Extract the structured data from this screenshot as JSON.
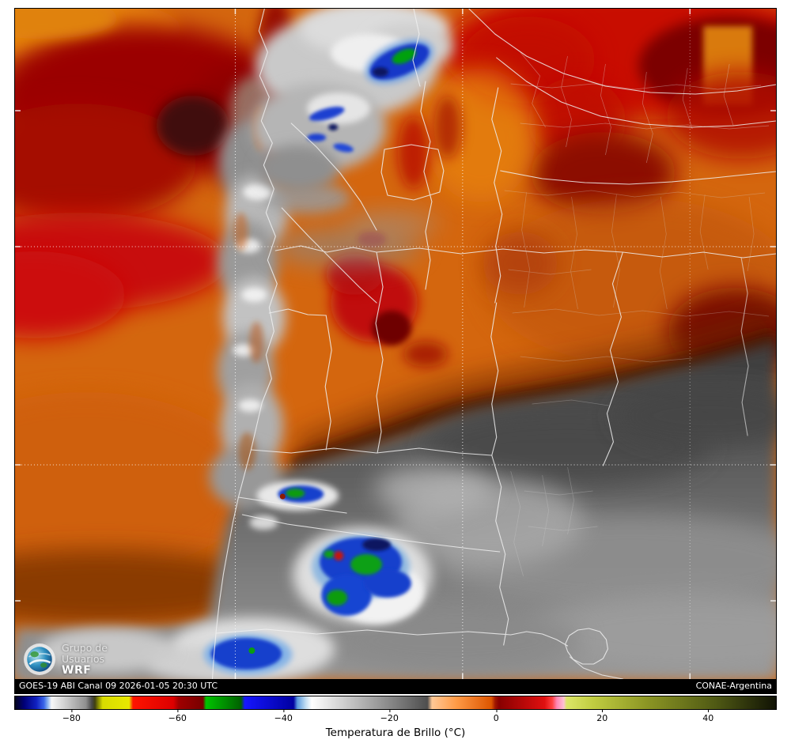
{
  "statusbar": {
    "left": "GOES-19 ABI Canal 09 2026-01-05 20:30 UTC",
    "right": "CONAE-Argentina"
  },
  "logo": {
    "icon": "wrf-globe-icon",
    "line1": "Grupo de",
    "line2": "Usuarios",
    "line3": "WRF"
  },
  "colorbar": {
    "title": "Temperatura de Brillo (°C)",
    "ticks": [
      {
        "label": "−80",
        "pos": 7.5
      },
      {
        "label": "−60",
        "pos": 21.4
      },
      {
        "label": "−40",
        "pos": 35.3
      },
      {
        "label": "−20",
        "pos": 49.2
      },
      {
        "label": "0",
        "pos": 63.2
      },
      {
        "label": "20",
        "pos": 77.1
      },
      {
        "label": "40",
        "pos": 91.0
      }
    ],
    "gradient": [
      {
        "p": 0.0,
        "c": "#05051e"
      },
      {
        "p": 1.2,
        "c": "#000078"
      },
      {
        "p": 2.8,
        "c": "#1020c0"
      },
      {
        "p": 3.8,
        "c": "#3a66e8"
      },
      {
        "p": 4.3,
        "c": "#8ab4f0"
      },
      {
        "p": 4.8,
        "c": "#f8f8f8"
      },
      {
        "p": 9.3,
        "c": "#909090"
      },
      {
        "p": 10.1,
        "c": "#484848"
      },
      {
        "p": 10.5,
        "c": "#404010"
      },
      {
        "p": 11.0,
        "c": "#909400"
      },
      {
        "p": 11.5,
        "c": "#d8dc00"
      },
      {
        "p": 15.0,
        "c": "#e8e800"
      },
      {
        "p": 15.5,
        "c": "#ff1400"
      },
      {
        "p": 20.8,
        "c": "#dc0000"
      },
      {
        "p": 21.5,
        "c": "#a00000"
      },
      {
        "p": 24.7,
        "c": "#780000"
      },
      {
        "p": 25.1,
        "c": "#00c400"
      },
      {
        "p": 29.7,
        "c": "#006000"
      },
      {
        "p": 30.2,
        "c": "#1616ff"
      },
      {
        "p": 36.6,
        "c": "#0000a0"
      },
      {
        "p": 37.1,
        "c": "#5a9ade"
      },
      {
        "p": 38.2,
        "c": "#c2ddf2"
      },
      {
        "p": 39.0,
        "c": "#ffffff"
      },
      {
        "p": 51.5,
        "c": "#6e6e6e"
      },
      {
        "p": 54.2,
        "c": "#4e4e4e"
      },
      {
        "p": 54.8,
        "c": "#ffc896"
      },
      {
        "p": 58.0,
        "c": "#ff9a46"
      },
      {
        "p": 62.6,
        "c": "#dc5500"
      },
      {
        "p": 63.1,
        "c": "#a01600"
      },
      {
        "p": 63.6,
        "c": "#880000"
      },
      {
        "p": 69.6,
        "c": "#e01010"
      },
      {
        "p": 70.6,
        "c": "#ff4040"
      },
      {
        "p": 71.2,
        "c": "#ff86b4"
      },
      {
        "p": 72.1,
        "c": "#ffc0d4"
      },
      {
        "p": 72.5,
        "c": "#dce668"
      },
      {
        "p": 76.0,
        "c": "#c0cc40"
      },
      {
        "p": 83.0,
        "c": "#8c9624"
      },
      {
        "p": 92.0,
        "c": "#505a14"
      },
      {
        "p": 100.0,
        "c": "#101204"
      }
    ]
  }
}
